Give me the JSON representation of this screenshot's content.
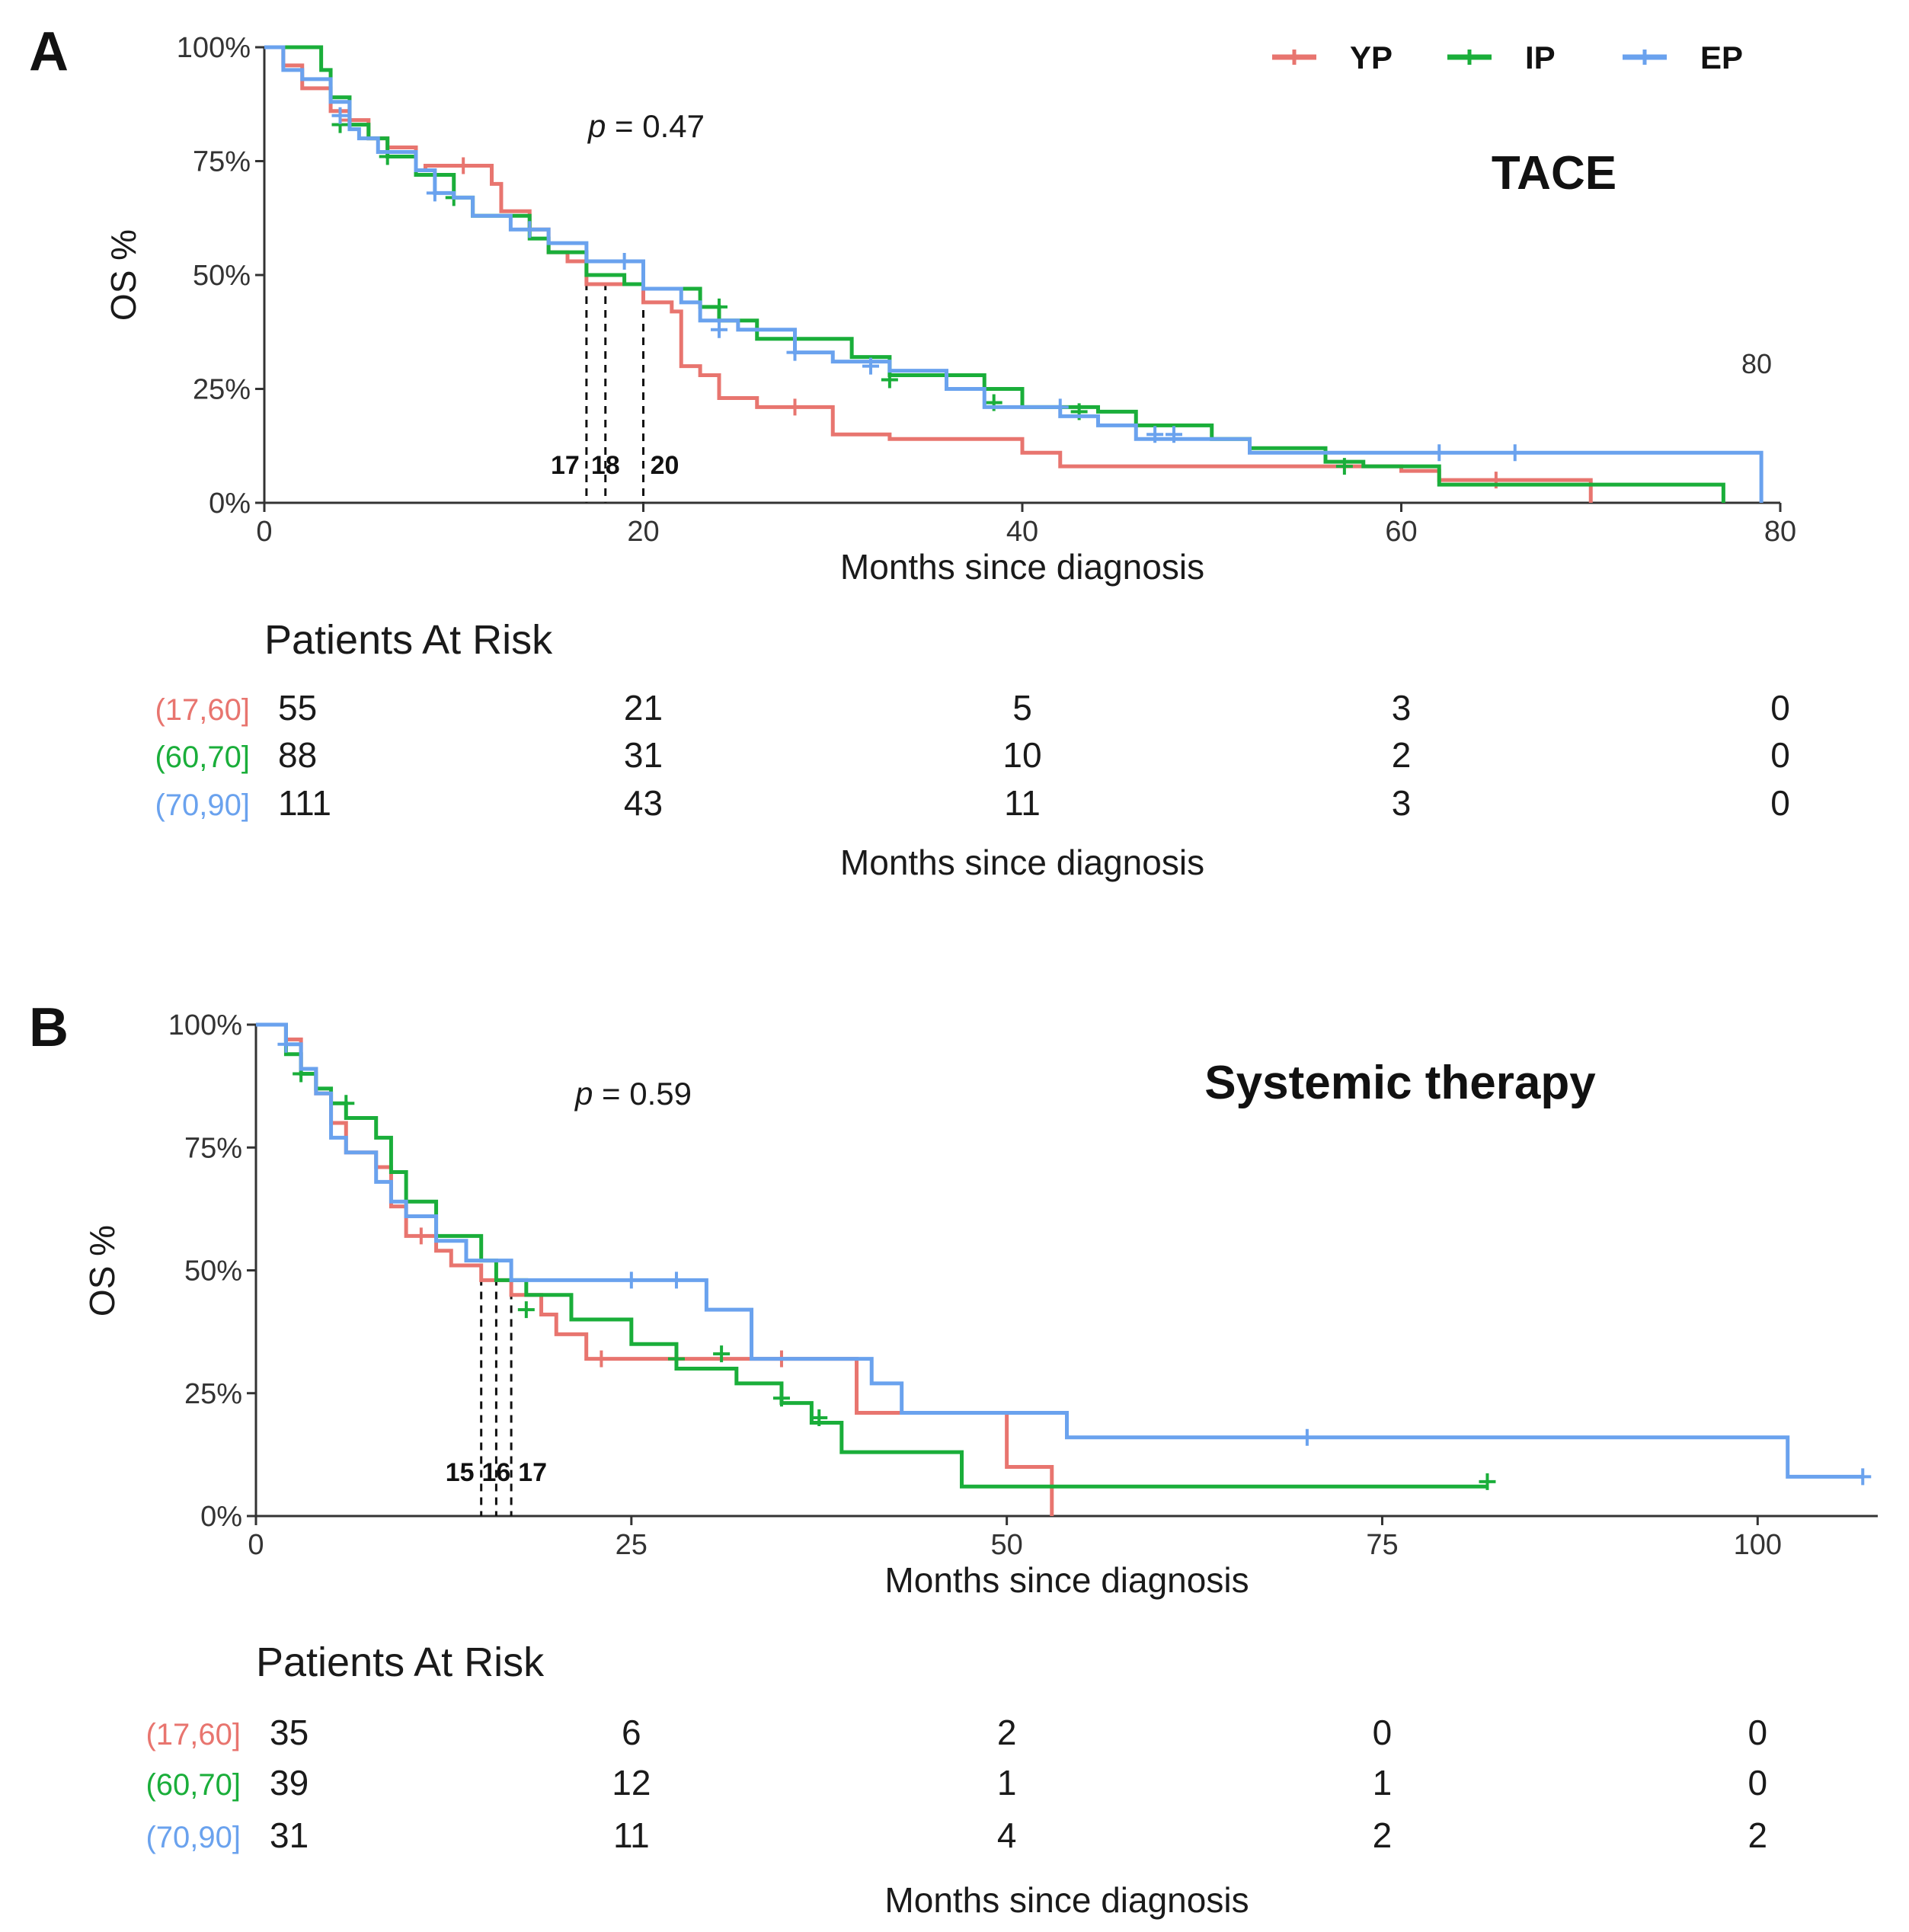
{
  "colors": {
    "YP": "#E8756F",
    "IP": "#1AAE3A",
    "EP": "#6AA2EE"
  },
  "legend": [
    {
      "key": "YP",
      "label": "YP"
    },
    {
      "key": "IP",
      "label": "IP"
    },
    {
      "key": "EP",
      "label": "EP"
    }
  ],
  "chart_data": [
    {
      "type": "line",
      "step": true,
      "panel": "A",
      "title": "TACE",
      "p_value_label": "p",
      "p_value_rest": " = 0.47",
      "stray_label": "80",
      "xlabel": "Months since diagnosis",
      "ylabel": "OS %",
      "xlim": [
        0,
        80
      ],
      "ylim": [
        0,
        100
      ],
      "x_ticks": [
        "0",
        "20",
        "40",
        "60",
        "80"
      ],
      "x_tick_values": [
        0,
        20,
        40,
        60,
        80
      ],
      "y_ticks": [
        "0%",
        "25%",
        "50%",
        "75%",
        "100%"
      ],
      "y_tick_values": [
        0,
        25,
        50,
        75,
        100
      ],
      "medians": [
        {
          "label": "17",
          "x": 17
        },
        {
          "label": "18",
          "x": 18
        },
        {
          "label": "20",
          "x": 20
        }
      ],
      "series": [
        {
          "name": "YP",
          "color_key": "YP",
          "x": [
            0,
            1,
            2,
            3.5,
            4.5,
            5.5,
            6.5,
            8,
            8.5,
            12,
            12.5,
            14,
            15,
            16,
            17,
            18,
            20,
            21.5,
            22,
            23,
            24,
            26,
            28,
            30,
            33,
            40,
            42,
            44,
            52,
            60,
            62,
            70
          ],
          "y": [
            100,
            96,
            91,
            86,
            84,
            80,
            78,
            73,
            74,
            70,
            64,
            60,
            55,
            53,
            48,
            48,
            44,
            42,
            30,
            28,
            23,
            21,
            21,
            15,
            14,
            11,
            8,
            8,
            8,
            7,
            5,
            0
          ],
          "censor": [
            [
              4.5,
              84
            ],
            [
              10.5,
              74
            ],
            [
              28,
              21
            ],
            [
              65,
              5
            ]
          ]
        },
        {
          "name": "IP",
          "color_key": "IP",
          "x": [
            0,
            3,
            3.5,
            4.5,
            5.5,
            6.5,
            8,
            10,
            11,
            14,
            15,
            17,
            19,
            20,
            23,
            24,
            26,
            29,
            31,
            33,
            38,
            40,
            44,
            46,
            50,
            52,
            56,
            58,
            62,
            77
          ],
          "y": [
            100,
            95,
            89,
            83,
            80,
            76,
            72,
            67,
            63,
            58,
            55,
            50,
            48,
            47,
            43,
            40,
            36,
            36,
            32,
            28,
            25,
            21,
            20,
            17,
            14,
            12,
            9,
            8,
            4,
            0
          ],
          "censor": [
            [
              4,
              83
            ],
            [
              6.5,
              76
            ],
            [
              10,
              67
            ],
            [
              24,
              43
            ],
            [
              33,
              27
            ],
            [
              38.5,
              22
            ],
            [
              43,
              20
            ],
            [
              57,
              8
            ]
          ]
        },
        {
          "name": "EP",
          "color_key": "EP",
          "x": [
            0,
            1,
            2,
            3.5,
            4.5,
            5,
            6,
            8,
            9,
            10,
            11,
            13,
            15,
            17,
            19,
            20,
            22,
            23,
            25,
            28,
            30,
            33,
            36,
            38,
            42,
            44,
            46,
            52,
            58,
            61,
            79
          ],
          "y": [
            100,
            95,
            93,
            88,
            82,
            80,
            77,
            73,
            68,
            67,
            63,
            60,
            57,
            53,
            53,
            47,
            44,
            40,
            38,
            33,
            31,
            29,
            25,
            21,
            19,
            17,
            14,
            11,
            11,
            11,
            0
          ],
          "censor": [
            [
              4,
              85
            ],
            [
              9,
              68
            ],
            [
              14,
              60
            ],
            [
              19,
              53
            ],
            [
              24,
              38
            ],
            [
              28,
              33
            ],
            [
              32,
              30
            ],
            [
              42,
              21
            ],
            [
              47,
              15
            ],
            [
              48,
              15
            ],
            [
              62,
              11
            ],
            [
              66,
              11
            ]
          ]
        }
      ],
      "risk_table": {
        "title": "Patients At Risk",
        "xlabel": "Months since diagnosis",
        "times": [
          0,
          20,
          40,
          60,
          80
        ],
        "rows": [
          {
            "label": "(17,60]",
            "color_key": "YP",
            "values": [
              "55",
              "21",
              "5",
              "3",
              "0"
            ]
          },
          {
            "label": "(60,70]",
            "color_key": "IP",
            "values": [
              "88",
              "31",
              "10",
              "2",
              "0"
            ]
          },
          {
            "label": "(70,90]",
            "color_key": "EP",
            "values": [
              "111",
              "43",
              "11",
              "3",
              "0"
            ]
          }
        ]
      }
    },
    {
      "type": "line",
      "step": true,
      "panel": "B",
      "title": "Systemic therapy",
      "p_value_label": "p",
      "p_value_rest": " = 0.59",
      "xlabel": "Months since diagnosis",
      "ylabel": "OS %",
      "xlim": [
        0,
        108
      ],
      "ylim": [
        0,
        100
      ],
      "x_ticks": [
        "0",
        "25",
        "50",
        "75",
        "100"
      ],
      "x_tick_values": [
        0,
        25,
        50,
        75,
        100
      ],
      "y_ticks": [
        "0%",
        "25%",
        "50%",
        "75%",
        "100%"
      ],
      "y_tick_values": [
        0,
        25,
        50,
        75,
        100
      ],
      "medians": [
        {
          "label": "15",
          "x": 15
        },
        {
          "label": "16",
          "x": 16
        },
        {
          "label": "17",
          "x": 17
        }
      ],
      "series": [
        {
          "name": "YP",
          "color_key": "YP",
          "x": [
            0,
            2,
            3,
            4,
            5,
            6,
            8,
            9,
            10,
            12,
            13,
            15,
            17,
            19,
            20,
            22,
            40,
            50,
            53
          ],
          "y": [
            100,
            97,
            91,
            86,
            80,
            74,
            71,
            63,
            57,
            54,
            51,
            48,
            45,
            41,
            37,
            32,
            21,
            10,
            0
          ],
          "censor": [
            [
              11,
              57
            ],
            [
              23,
              32
            ],
            [
              28,
              32
            ],
            [
              35,
              32
            ]
          ]
        },
        {
          "name": "IP",
          "color_key": "IP",
          "x": [
            0,
            2,
            3,
            4,
            5,
            6,
            8,
            9,
            10,
            12,
            15,
            16,
            18,
            21,
            25,
            28,
            32,
            35,
            37,
            39,
            47,
            82
          ],
          "y": [
            100,
            94,
            90,
            87,
            84,
            81,
            77,
            70,
            64,
            57,
            52,
            48,
            45,
            40,
            35,
            30,
            27,
            23,
            19,
            13,
            6,
            6
          ],
          "censor": [
            [
              3,
              90
            ],
            [
              6,
              84
            ],
            [
              18,
              42
            ],
            [
              28,
              32
            ],
            [
              31,
              33
            ],
            [
              35,
              24
            ],
            [
              37.5,
              20
            ],
            [
              82,
              7
            ]
          ]
        },
        {
          "name": "EP",
          "color_key": "EP",
          "x": [
            0,
            2,
            3,
            4,
            5,
            6,
            8,
            9,
            10,
            12,
            14,
            17,
            30,
            33,
            40,
            41,
            43,
            50,
            54,
            102,
            107
          ],
          "y": [
            100,
            96,
            91,
            86,
            77,
            74,
            68,
            64,
            61,
            56,
            52,
            48,
            42,
            32,
            32,
            27,
            21,
            21,
            16,
            8,
            8
          ],
          "censor": [
            [
              2,
              96
            ],
            [
              25,
              48
            ],
            [
              28,
              48
            ],
            [
              70,
              16
            ],
            [
              107,
              8
            ]
          ]
        }
      ],
      "risk_table": {
        "title": "Patients At Risk",
        "xlabel": "Months since diagnosis",
        "times": [
          0,
          25,
          50,
          75,
          100
        ],
        "rows": [
          {
            "label": "(17,60]",
            "color_key": "YP",
            "values": [
              "35",
              "6",
              "2",
              "0",
              "0"
            ]
          },
          {
            "label": "(60,70]",
            "color_key": "IP",
            "values": [
              "39",
              "12",
              "1",
              "1",
              "0"
            ]
          },
          {
            "label": "(70,90]",
            "color_key": "EP",
            "values": [
              "31",
              "11",
              "4",
              "2",
              "2"
            ]
          }
        ]
      }
    }
  ]
}
